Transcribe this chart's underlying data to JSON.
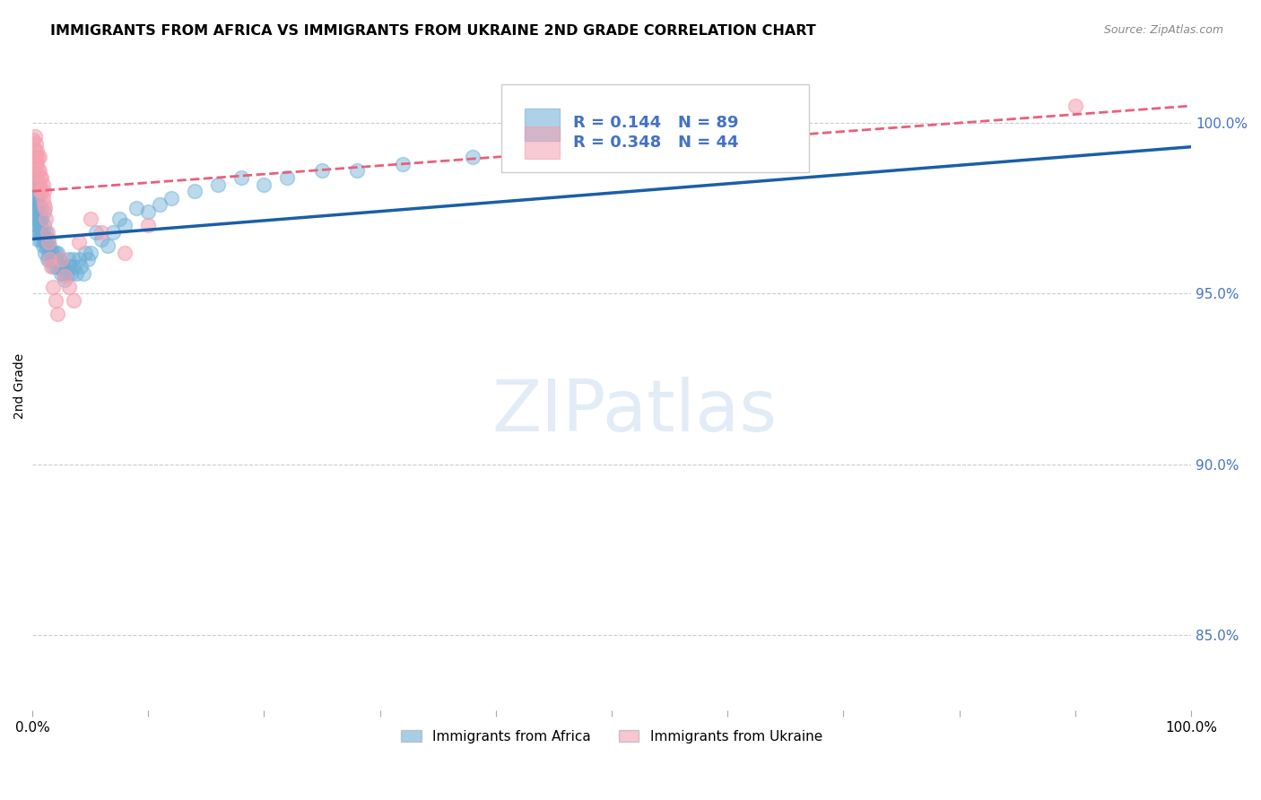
{
  "title": "IMMIGRANTS FROM AFRICA VS IMMIGRANTS FROM UKRAINE 2ND GRADE CORRELATION CHART",
  "source": "Source: ZipAtlas.com",
  "ylabel": "2nd Grade",
  "ytick_labels": [
    "85.0%",
    "90.0%",
    "95.0%",
    "100.0%"
  ],
  "ytick_values": [
    0.85,
    0.9,
    0.95,
    1.0
  ],
  "xlim": [
    0.0,
    1.0
  ],
  "ylim": [
    0.828,
    1.018
  ],
  "legend_label_africa": "Immigrants from Africa",
  "legend_label_ukraine": "Immigrants from Ukraine",
  "africa_color": "#6baed6",
  "ukraine_color": "#f4a0b0",
  "africa_line_color": "#1a5fa8",
  "ukraine_line_color": "#e8607a",
  "africa_R": 0.144,
  "africa_N": 89,
  "ukraine_R": 0.348,
  "ukraine_N": 44,
  "africa_line_x": [
    0.0,
    1.0
  ],
  "africa_line_y": [
    0.966,
    0.993
  ],
  "ukraine_line_x": [
    0.0,
    1.0
  ],
  "ukraine_line_y": [
    0.98,
    1.005
  ],
  "africa_scatter_x": [
    0.001,
    0.001,
    0.001,
    0.002,
    0.002,
    0.002,
    0.002,
    0.003,
    0.003,
    0.003,
    0.003,
    0.004,
    0.004,
    0.004,
    0.005,
    0.005,
    0.005,
    0.005,
    0.006,
    0.006,
    0.006,
    0.007,
    0.007,
    0.007,
    0.008,
    0.008,
    0.009,
    0.009,
    0.01,
    0.01,
    0.01,
    0.011,
    0.011,
    0.012,
    0.012,
    0.013,
    0.013,
    0.014,
    0.014,
    0.015,
    0.015,
    0.016,
    0.017,
    0.018,
    0.018,
    0.019,
    0.02,
    0.02,
    0.021,
    0.022,
    0.022,
    0.023,
    0.024,
    0.025,
    0.026,
    0.027,
    0.028,
    0.03,
    0.031,
    0.032,
    0.033,
    0.035,
    0.036,
    0.038,
    0.04,
    0.042,
    0.044,
    0.046,
    0.048,
    0.05,
    0.055,
    0.06,
    0.065,
    0.07,
    0.075,
    0.08,
    0.09,
    0.1,
    0.11,
    0.12,
    0.14,
    0.16,
    0.18,
    0.2,
    0.22,
    0.25,
    0.28,
    0.32,
    0.38
  ],
  "africa_scatter_y": [
    0.978,
    0.982,
    0.985,
    0.972,
    0.976,
    0.98,
    0.984,
    0.97,
    0.974,
    0.978,
    0.982,
    0.968,
    0.972,
    0.976,
    0.966,
    0.97,
    0.974,
    0.978,
    0.968,
    0.972,
    0.976,
    0.966,
    0.97,
    0.974,
    0.968,
    0.972,
    0.964,
    0.968,
    0.966,
    0.97,
    0.974,
    0.962,
    0.966,
    0.964,
    0.968,
    0.96,
    0.964,
    0.962,
    0.966,
    0.96,
    0.964,
    0.962,
    0.96,
    0.958,
    0.962,
    0.96,
    0.958,
    0.962,
    0.96,
    0.958,
    0.962,
    0.96,
    0.958,
    0.956,
    0.958,
    0.956,
    0.954,
    0.956,
    0.96,
    0.958,
    0.956,
    0.96,
    0.958,
    0.956,
    0.96,
    0.958,
    0.956,
    0.962,
    0.96,
    0.962,
    0.968,
    0.966,
    0.964,
    0.968,
    0.972,
    0.97,
    0.975,
    0.974,
    0.976,
    0.978,
    0.98,
    0.982,
    0.984,
    0.982,
    0.984,
    0.986,
    0.986,
    0.988,
    0.99
  ],
  "ukraine_scatter_x": [
    0.001,
    0.001,
    0.002,
    0.002,
    0.002,
    0.003,
    0.003,
    0.003,
    0.004,
    0.004,
    0.004,
    0.005,
    0.005,
    0.005,
    0.006,
    0.006,
    0.006,
    0.007,
    0.007,
    0.008,
    0.008,
    0.009,
    0.009,
    0.01,
    0.01,
    0.011,
    0.012,
    0.013,
    0.014,
    0.015,
    0.016,
    0.018,
    0.02,
    0.022,
    0.025,
    0.028,
    0.032,
    0.036,
    0.04,
    0.05,
    0.06,
    0.08,
    0.1,
    0.9
  ],
  "ukraine_scatter_y": [
    0.99,
    0.995,
    0.988,
    0.992,
    0.996,
    0.985,
    0.99,
    0.994,
    0.985,
    0.988,
    0.992,
    0.982,
    0.986,
    0.99,
    0.982,
    0.986,
    0.99,
    0.98,
    0.984,
    0.98,
    0.984,
    0.978,
    0.982,
    0.976,
    0.98,
    0.975,
    0.972,
    0.968,
    0.965,
    0.96,
    0.958,
    0.952,
    0.948,
    0.944,
    0.96,
    0.955,
    0.952,
    0.948,
    0.965,
    0.972,
    0.968,
    0.962,
    0.97,
    1.005
  ]
}
